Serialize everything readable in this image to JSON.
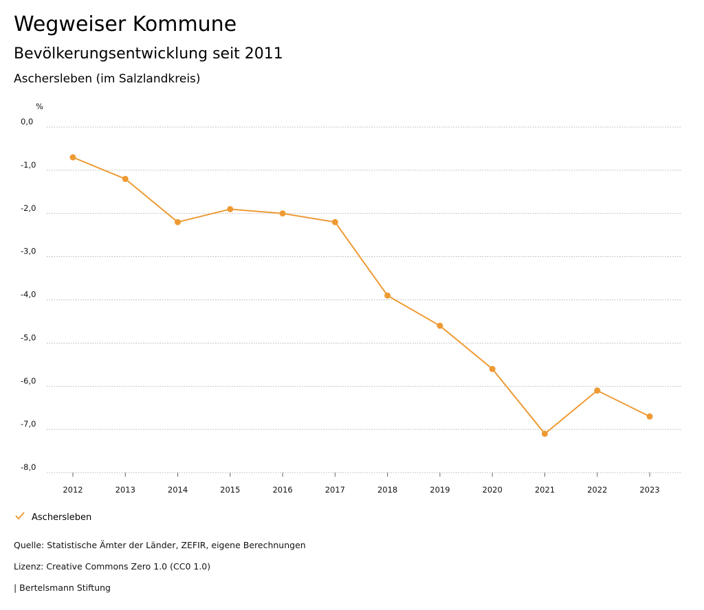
{
  "header": {
    "title": "Wegweiser Kommune",
    "subtitle": "Bevölkerungsentwicklung seit 2011",
    "region": "Aschersleben (im Salzlandkreis)"
  },
  "chart_data": {
    "type": "line",
    "ylabel": "%",
    "x": [
      "2012",
      "2013",
      "2014",
      "2015",
      "2016",
      "2017",
      "2018",
      "2019",
      "2020",
      "2021",
      "2022",
      "2023"
    ],
    "y_ticks": [
      "0,0",
      "-1,0",
      "-2,0",
      "-3,0",
      "-4,0",
      "-5,0",
      "-6,0",
      "-7,0",
      "-8,0"
    ],
    "ylim": [
      -8,
      0
    ],
    "grid": true,
    "legend_position": "bottom-left",
    "series": [
      {
        "name": "Aschersleben",
        "color": "#EE9A33",
        "values": [
          -0.7,
          -1.2,
          -2.2,
          -1.9,
          -2.0,
          -2.2,
          -3.9,
          -4.6,
          -5.6,
          -7.1,
          -6.1,
          -6.7
        ]
      }
    ]
  },
  "legend": {
    "icon": "check-icon",
    "label": "Aschersleben"
  },
  "footer": {
    "source": "Quelle: Statistische Ämter der Länder, ZEFIR, eigene Berechnungen",
    "license": "Lizenz: Creative Commons Zero 1.0 (CC0 1.0)",
    "publisher": "| Bertelsmann Stiftung"
  }
}
